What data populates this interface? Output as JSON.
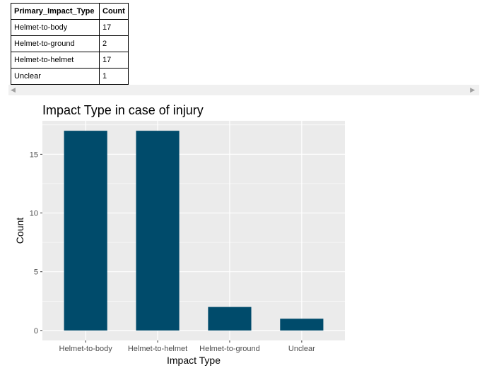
{
  "table": {
    "headers": [
      "Primary_Impact_Type",
      "Count"
    ],
    "rows": [
      [
        "Helmet-to-body",
        "17"
      ],
      [
        "Helmet-to-ground",
        "2"
      ],
      [
        "Helmet-to-helmet",
        "17"
      ],
      [
        "Unclear",
        "1"
      ]
    ]
  },
  "scrollbar": {
    "left_arrow": "◀",
    "right_arrow": "▶"
  },
  "chart_data": {
    "type": "bar",
    "title": "Impact Type in case of injury",
    "xlabel": "Impact Type",
    "ylabel": "Count",
    "categories": [
      "Helmet-to-body",
      "Helmet-to-helmet",
      "Helmet-to-ground",
      "Unclear"
    ],
    "values": [
      17,
      17,
      2,
      1
    ],
    "ylim": [
      0,
      17.85
    ],
    "yticks": [
      0,
      5,
      10,
      15
    ],
    "grid": true,
    "bar_color": "#004b6b",
    "panel_color": "#ebebeb"
  }
}
